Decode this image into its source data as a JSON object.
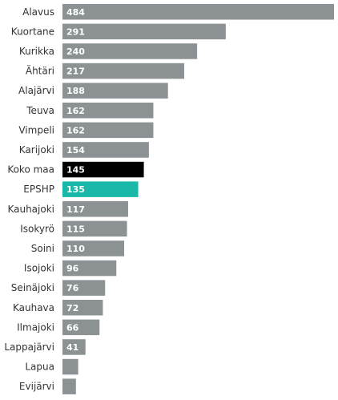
{
  "chart_data": {
    "type": "bar",
    "orientation": "horizontal",
    "title": "",
    "xlabel": "",
    "ylabel": "",
    "xlim": [
      0,
      484
    ],
    "grid": false,
    "legend": "none",
    "categories": [
      "Alavus",
      "Kuortane",
      "Kurikka",
      "Ähtäri",
      "Alajärvi",
      "Teuva",
      "Vimpeli",
      "Karijoki",
      "Koko maa",
      "EPSHP",
      "Kauhajoki",
      "Isokyrö",
      "Soini",
      "Isojoki",
      "Seinäjoki",
      "Kauhava",
      "Ilmajoki",
      "Lappajärvi",
      "Lapua",
      "Evijärvi"
    ],
    "values": [
      484,
      291,
      240,
      217,
      188,
      162,
      162,
      154,
      145,
      135,
      117,
      115,
      110,
      96,
      76,
      72,
      66,
      41,
      28,
      24
    ],
    "value_labels": [
      "484",
      "291",
      "240",
      "217",
      "188",
      "162",
      "162",
      "154",
      "145",
      "135",
      "117",
      "115",
      "110",
      "96",
      "76",
      "72",
      "66",
      "41",
      "",
      ""
    ],
    "bar_colors": [
      "#8c9194",
      "#8c9194",
      "#8c9194",
      "#8c9194",
      "#8c9194",
      "#8c9194",
      "#8c9194",
      "#8c9194",
      "#000000",
      "#19b8a9",
      "#8c9194",
      "#8c9194",
      "#8c9194",
      "#8c9194",
      "#8c9194",
      "#8c9194",
      "#8c9194",
      "#8c9194",
      "#8c9194",
      "#8c9194"
    ]
  }
}
